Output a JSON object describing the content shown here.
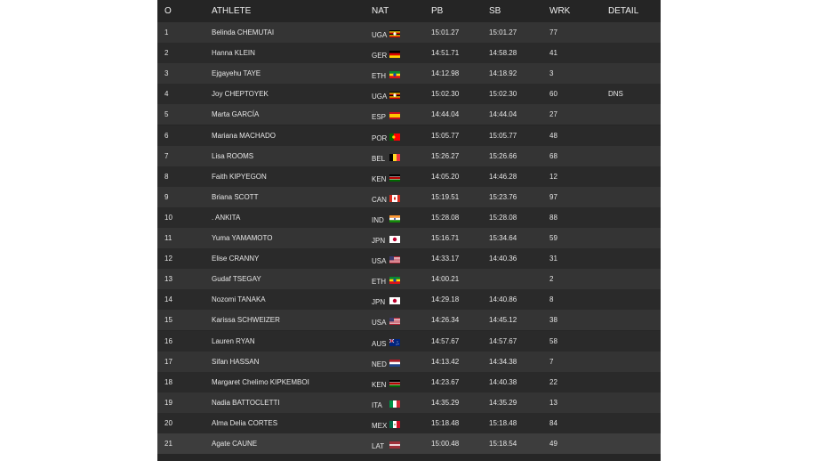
{
  "headers": [
    "O",
    "ATHLETE",
    "NAT",
    "PB",
    "SB",
    "WRK",
    "DETAIL"
  ],
  "rows": [
    {
      "o": "1",
      "athlete": "Belinda CHEMUTAI",
      "nat": "UGA",
      "flag": "uganda-flag-icon",
      "pb": "15:01.27",
      "sb": "15:01.27",
      "wrk": "77",
      "detail": ""
    },
    {
      "o": "2",
      "athlete": "Hanna KLEIN",
      "nat": "GER",
      "flag": "germany-flag-icon",
      "pb": "14:51.71",
      "sb": "14:58.28",
      "wrk": "41",
      "detail": ""
    },
    {
      "o": "3",
      "athlete": "Ejgayehu TAYE",
      "nat": "ETH",
      "flag": "ethiopia-flag-icon",
      "pb": "14:12.98",
      "sb": "14:18.92",
      "wrk": "3",
      "detail": ""
    },
    {
      "o": "4",
      "athlete": "Joy CHEPTOYEK",
      "nat": "UGA",
      "flag": "uganda-flag-icon",
      "pb": "15:02.30",
      "sb": "15:02.30",
      "wrk": "60",
      "detail": "DNS"
    },
    {
      "o": "5",
      "athlete": "Marta GARCÍA",
      "nat": "ESP",
      "flag": "spain-flag-icon",
      "pb": "14:44.04",
      "sb": "14:44.04",
      "wrk": "27",
      "detail": ""
    },
    {
      "o": "6",
      "athlete": "Mariana MACHADO",
      "nat": "POR",
      "flag": "portugal-flag-icon",
      "pb": "15:05.77",
      "sb": "15:05.77",
      "wrk": "48",
      "detail": ""
    },
    {
      "o": "7",
      "athlete": "Lisa ROOMS",
      "nat": "BEL",
      "flag": "belgium-flag-icon",
      "pb": "15:26.27",
      "sb": "15:26.66",
      "wrk": "68",
      "detail": ""
    },
    {
      "o": "8",
      "athlete": "Faith KIPYEGON",
      "nat": "KEN",
      "flag": "kenya-flag-icon",
      "pb": "14:05.20",
      "sb": "14:46.28",
      "wrk": "12",
      "detail": ""
    },
    {
      "o": "9",
      "athlete": "Briana SCOTT",
      "nat": "CAN",
      "flag": "canada-flag-icon",
      "pb": "15:19.51",
      "sb": "15:23.76",
      "wrk": "97",
      "detail": ""
    },
    {
      "o": "10",
      "athlete": ". ANKITA",
      "nat": "IND",
      "flag": "india-flag-icon",
      "pb": "15:28.08",
      "sb": "15:28.08",
      "wrk": "88",
      "detail": ""
    },
    {
      "o": "11",
      "athlete": "Yuma YAMAMOTO",
      "nat": "JPN",
      "flag": "japan-flag-icon",
      "pb": "15:16.71",
      "sb": "15:34.64",
      "wrk": "59",
      "detail": ""
    },
    {
      "o": "12",
      "athlete": "Elise CRANNY",
      "nat": "USA",
      "flag": "usa-flag-icon",
      "pb": "14:33.17",
      "sb": "14:40.36",
      "wrk": "31",
      "detail": ""
    },
    {
      "o": "13",
      "athlete": "Gudaf TSEGAY",
      "nat": "ETH",
      "flag": "ethiopia-flag-icon",
      "pb": "14:00.21",
      "sb": "",
      "wrk": "2",
      "detail": ""
    },
    {
      "o": "14",
      "athlete": "Nozomi TANAKA",
      "nat": "JPN",
      "flag": "japan-flag-icon",
      "pb": "14:29.18",
      "sb": "14:40.86",
      "wrk": "8",
      "detail": ""
    },
    {
      "o": "15",
      "athlete": "Karissa SCHWEIZER",
      "nat": "USA",
      "flag": "usa-flag-icon",
      "pb": "14:26.34",
      "sb": "14:45.12",
      "wrk": "38",
      "detail": ""
    },
    {
      "o": "16",
      "athlete": "Lauren RYAN",
      "nat": "AUS",
      "flag": "australia-flag-icon",
      "pb": "14:57.67",
      "sb": "14:57.67",
      "wrk": "58",
      "detail": ""
    },
    {
      "o": "17",
      "athlete": "Sifan HASSAN",
      "nat": "NED",
      "flag": "netherlands-flag-icon",
      "pb": "14:13.42",
      "sb": "14:34.38",
      "wrk": "7",
      "detail": ""
    },
    {
      "o": "18",
      "athlete": "Margaret Chelimo KIPKEMBOI",
      "nat": "KEN",
      "flag": "kenya-flag-icon",
      "pb": "14:23.67",
      "sb": "14:40.38",
      "wrk": "22",
      "detail": ""
    },
    {
      "o": "19",
      "athlete": "Nadia BATTOCLETTI",
      "nat": "ITA",
      "flag": "italy-flag-icon",
      "pb": "14:35.29",
      "sb": "14:35.29",
      "wrk": "13",
      "detail": ""
    },
    {
      "o": "20",
      "athlete": "Alma Delia CORTES",
      "nat": "MEX",
      "flag": "mexico-flag-icon",
      "pb": "15:18.48",
      "sb": "15:18.48",
      "wrk": "84",
      "detail": ""
    },
    {
      "o": "21",
      "athlete": "Agate CAUNE",
      "nat": "LAT",
      "flag": "latvia-flag-icon",
      "pb": "15:00.48",
      "sb": "15:18.54",
      "wrk": "49",
      "detail": ""
    }
  ]
}
